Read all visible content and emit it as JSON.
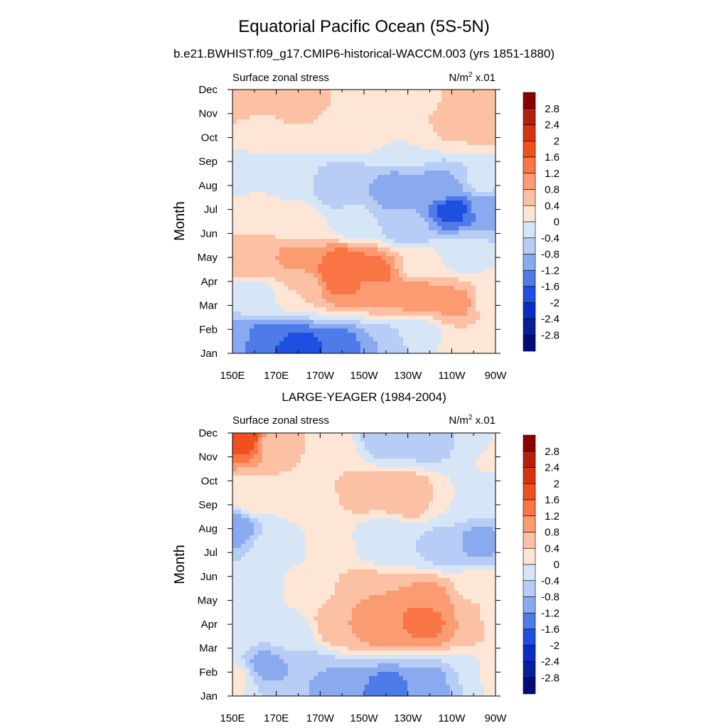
{
  "figure": {
    "title": "Equatorial Pacific Ocean (5S-5N)"
  },
  "colorbar": {
    "labels": [
      "2.8",
      "2.4",
      "2",
      "1.6",
      "1.2",
      "0.8",
      "0.4",
      "0",
      "-0.4",
      "-0.8",
      "-1.2",
      "-1.6",
      "-2",
      "-2.4",
      "-2.8"
    ],
    "colors": [
      "#8b0000",
      "#b4200c",
      "#d8330f",
      "#f0501e",
      "#fa7546",
      "#fb9b72",
      "#fcc0a4",
      "#fde6d6",
      "#d7e6f7",
      "#b7cdf5",
      "#8aaaf0",
      "#4f7be9",
      "#1f4fe0",
      "#0a2ec4",
      "#051e99",
      "#020c78"
    ]
  },
  "chart_data": [
    {
      "type": "heatmap",
      "subtitle": "b.e21.BWHIST.f09_g17.CMIP6-historical-WACCM.003 (yrs 1851-1880)",
      "left_label": "Surface zonal stress",
      "unit_base": "N/m",
      "unit_sup": "2",
      "unit_scale": " x.01",
      "ylabel": "Month",
      "x_ticks": [
        "150E",
        "170E",
        "170W",
        "150W",
        "130W",
        "110W",
        "90W"
      ],
      "x_range_deg_east": [
        150,
        270
      ],
      "y_ticks": [
        "Jan",
        "Feb",
        "Mar",
        "Apr",
        "May",
        "Jun",
        "Jul",
        "Aug",
        "Sep",
        "Oct",
        "Nov",
        "Dec"
      ],
      "levels": [
        -2.8,
        -2.4,
        -2,
        -1.6,
        -1.2,
        -0.8,
        -0.4,
        0,
        0.4,
        0.8,
        1.2,
        1.6,
        2,
        2.4,
        2.8
      ],
      "features": [
        {
          "lon": 150,
          "month": 1.6,
          "value": -1.0
        },
        {
          "lon": 165,
          "month": 1.4,
          "value": -1.6
        },
        {
          "lon": 182,
          "month": 1.1,
          "value": -1.8
        },
        {
          "lon": 200,
          "month": 1.2,
          "value": -1.4
        },
        {
          "lon": 218,
          "month": 1.3,
          "value": -0.8
        },
        {
          "lon": 235,
          "month": 1.7,
          "value": -0.3
        },
        {
          "lon": 255,
          "month": 1.3,
          "value": 0.3
        },
        {
          "lon": 268,
          "month": 1.5,
          "value": 0.3
        },
        {
          "lon": 160,
          "month": 3.3,
          "value": -0.2
        },
        {
          "lon": 180,
          "month": 3.7,
          "value": 0.4
        },
        {
          "lon": 200,
          "month": 4.1,
          "value": 1.3
        },
        {
          "lon": 215,
          "month": 3.9,
          "value": 1.1
        },
        {
          "lon": 235,
          "month": 3.4,
          "value": 1.0
        },
        {
          "lon": 252,
          "month": 3.1,
          "value": 0.9
        },
        {
          "lon": 268,
          "month": 3.2,
          "value": 0.2
        },
        {
          "lon": 160,
          "month": 5.0,
          "value": 0.8
        },
        {
          "lon": 180,
          "month": 5.0,
          "value": 0.9
        },
        {
          "lon": 200,
          "month": 4.6,
          "value": 1.6
        },
        {
          "lon": 215,
          "month": 4.3,
          "value": 1.4
        },
        {
          "lon": 235,
          "month": 4.6,
          "value": 0.3
        },
        {
          "lon": 255,
          "month": 5.1,
          "value": -0.2
        },
        {
          "lon": 160,
          "month": 6.6,
          "value": 0.3
        },
        {
          "lon": 180,
          "month": 6.3,
          "value": 0.2
        },
        {
          "lon": 205,
          "month": 6.5,
          "value": -0.3
        },
        {
          "lon": 230,
          "month": 6.3,
          "value": -0.7
        },
        {
          "lon": 250,
          "month": 7.0,
          "value": -1.7
        },
        {
          "lon": 268,
          "month": 7.1,
          "value": -1.0
        },
        {
          "lon": 152,
          "month": 8.6,
          "value": -0.3
        },
        {
          "lon": 175,
          "month": 8.4,
          "value": -0.2
        },
        {
          "lon": 200,
          "month": 8.0,
          "value": -0.8
        },
        {
          "lon": 225,
          "month": 7.7,
          "value": -1.0
        },
        {
          "lon": 245,
          "month": 7.9,
          "value": -0.9
        },
        {
          "lon": 265,
          "month": 8.2,
          "value": -0.3
        },
        {
          "lon": 160,
          "month": 10.3,
          "value": 0.3
        },
        {
          "lon": 185,
          "month": 10.6,
          "value": 0.4
        },
        {
          "lon": 205,
          "month": 10.1,
          "value": 0.1
        },
        {
          "lon": 230,
          "month": 9.8,
          "value": 0.0
        },
        {
          "lon": 250,
          "month": 10.6,
          "value": 0.5
        },
        {
          "lon": 268,
          "month": 10.6,
          "value": 0.6
        },
        {
          "lon": 155,
          "month": 11.6,
          "value": 0.8
        },
        {
          "lon": 180,
          "month": 11.7,
          "value": 0.6
        },
        {
          "lon": 210,
          "month": 11.8,
          "value": 0.3
        },
        {
          "lon": 235,
          "month": 11.7,
          "value": 0.3
        },
        {
          "lon": 258,
          "month": 11.6,
          "value": 0.7
        },
        {
          "lon": 268,
          "month": 12.0,
          "value": 0.5
        }
      ]
    },
    {
      "type": "heatmap",
      "subtitle": "LARGE-YEAGER (1984-2004)",
      "left_label": "Surface zonal stress",
      "unit_base": "N/m",
      "unit_sup": "2",
      "unit_scale": " x.01",
      "ylabel": "Month",
      "x_ticks": [
        "150E",
        "170E",
        "170W",
        "150W",
        "130W",
        "110W",
        "90W"
      ],
      "x_range_deg_east": [
        150,
        270
      ],
      "y_ticks": [
        "Jan",
        "Feb",
        "Mar",
        "Apr",
        "May",
        "Jun",
        "Jul",
        "Aug",
        "Sep",
        "Oct",
        "Nov",
        "Dec"
      ],
      "levels": [
        -2.8,
        -2.4,
        -2,
        -1.6,
        -1.2,
        -0.8,
        -0.4,
        0,
        0.4,
        0.8,
        1.2,
        1.6,
        2,
        2.4,
        2.8
      ],
      "features": [
        {
          "lon": 150,
          "month": 1.8,
          "value": 0.1
        },
        {
          "lon": 165,
          "month": 2.3,
          "value": -0.9
        },
        {
          "lon": 182,
          "month": 1.9,
          "value": -0.8
        },
        {
          "lon": 200,
          "month": 1.5,
          "value": -0.9
        },
        {
          "lon": 220,
          "month": 1.2,
          "value": -1.4
        },
        {
          "lon": 240,
          "month": 1.3,
          "value": -1.1
        },
        {
          "lon": 258,
          "month": 1.5,
          "value": -0.4
        },
        {
          "lon": 268,
          "month": 1.6,
          "value": 0.2
        },
        {
          "lon": 152,
          "month": 3.6,
          "value": -0.2
        },
        {
          "lon": 175,
          "month": 3.6,
          "value": -0.3
        },
        {
          "lon": 200,
          "month": 4.0,
          "value": 0.8
        },
        {
          "lon": 218,
          "month": 4.0,
          "value": 1.1
        },
        {
          "lon": 238,
          "month": 4.2,
          "value": 1.4
        },
        {
          "lon": 258,
          "month": 4.3,
          "value": 0.8
        },
        {
          "lon": 268,
          "month": 4.4,
          "value": 0.1
        },
        {
          "lon": 160,
          "month": 5.4,
          "value": -0.2
        },
        {
          "lon": 185,
          "month": 5.5,
          "value": 0.2
        },
        {
          "lon": 210,
          "month": 5.2,
          "value": 0.8
        },
        {
          "lon": 240,
          "month": 5.1,
          "value": 0.9
        },
        {
          "lon": 262,
          "month": 5.6,
          "value": 0.1
        },
        {
          "lon": 150,
          "month": 8.0,
          "value": -1.0
        },
        {
          "lon": 170,
          "month": 7.2,
          "value": -0.2
        },
        {
          "lon": 195,
          "month": 7.3,
          "value": 0.1
        },
        {
          "lon": 220,
          "month": 7.5,
          "value": -0.4
        },
        {
          "lon": 245,
          "month": 7.2,
          "value": -0.5
        },
        {
          "lon": 262,
          "month": 7.4,
          "value": -0.9
        },
        {
          "lon": 160,
          "month": 9.3,
          "value": 0.2
        },
        {
          "lon": 185,
          "month": 9.3,
          "value": 0.2
        },
        {
          "lon": 210,
          "month": 9.6,
          "value": 0.6
        },
        {
          "lon": 230,
          "month": 9.4,
          "value": 0.8
        },
        {
          "lon": 252,
          "month": 9.3,
          "value": 0.0
        },
        {
          "lon": 268,
          "month": 9.6,
          "value": -0.2
        },
        {
          "lon": 155,
          "month": 11.8,
          "value": 1.8
        },
        {
          "lon": 170,
          "month": 11.6,
          "value": 0.6
        },
        {
          "lon": 195,
          "month": 11.3,
          "value": 0.2
        },
        {
          "lon": 220,
          "month": 11.7,
          "value": -0.6
        },
        {
          "lon": 240,
          "month": 11.7,
          "value": -0.7
        },
        {
          "lon": 262,
          "month": 11.5,
          "value": -0.2
        },
        {
          "lon": 270,
          "month": 11.2,
          "value": 0.3
        }
      ]
    }
  ]
}
